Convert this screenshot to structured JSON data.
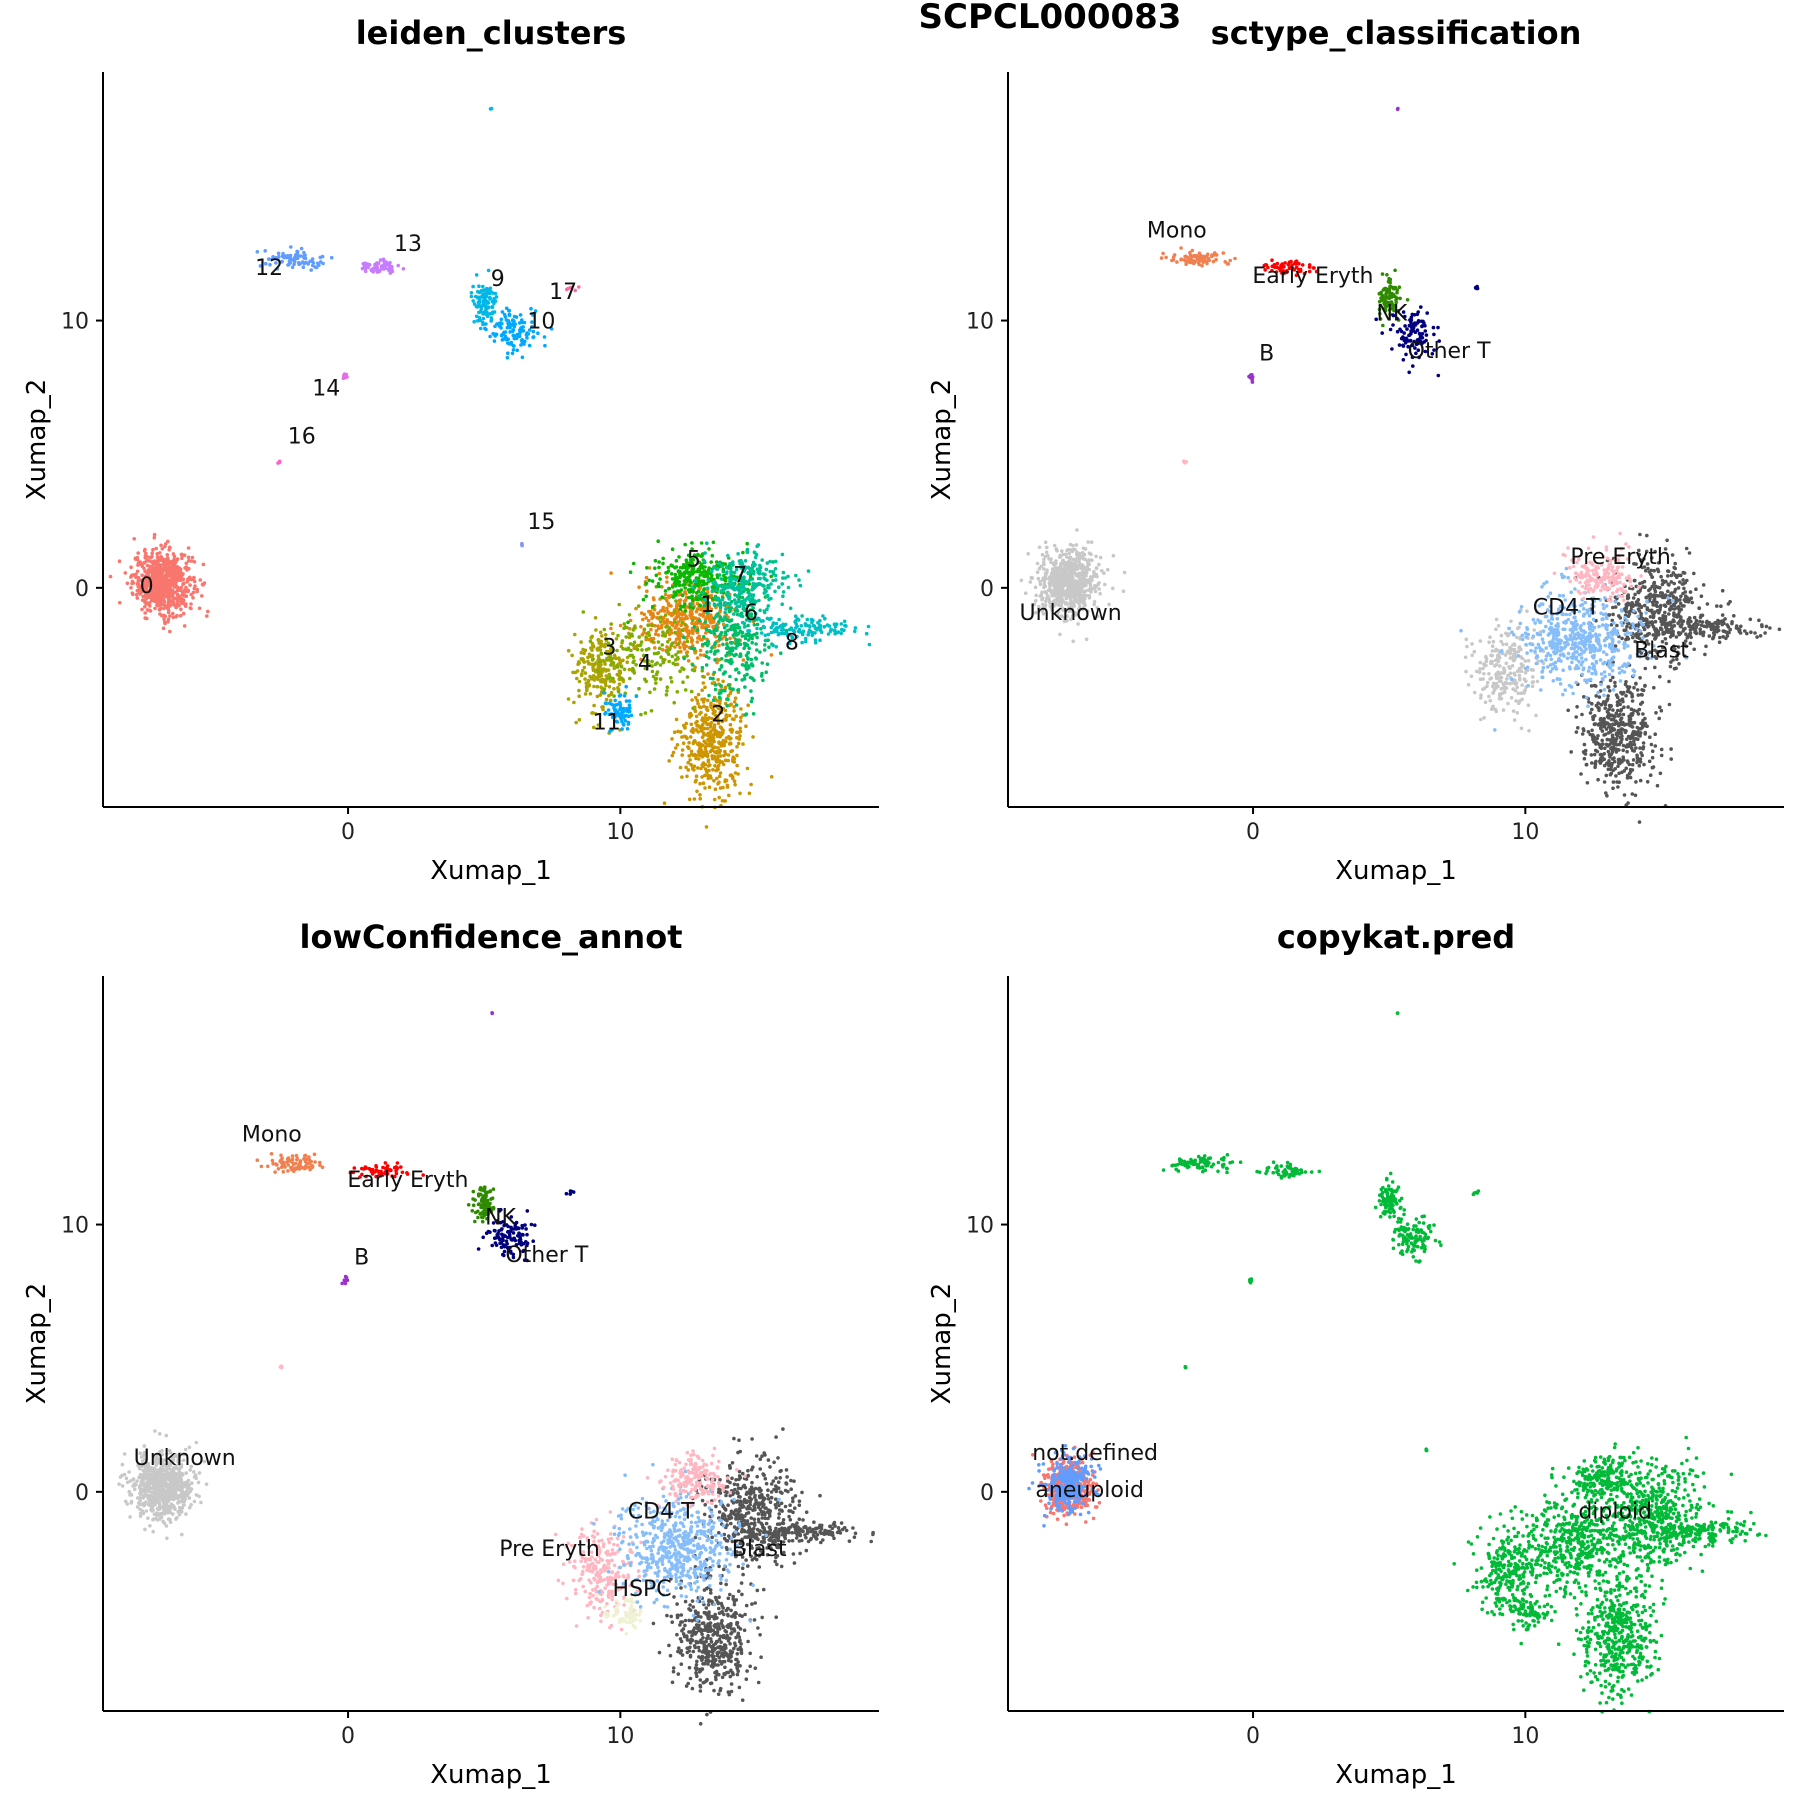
{
  "figure_title": "SCPCL000083",
  "point_colors": {
    "0": "#f8766d",
    "1": "#e68613",
    "2": "#cd9600",
    "3": "#aba300",
    "4": "#7cae00",
    "5": "#0cb702",
    "6": "#00be67",
    "7": "#00c19a",
    "8": "#00bfc4",
    "9": "#00b8e7",
    "10": "#00a9ff",
    "11": "#00a9ff",
    "12": "#619cff",
    "13": "#c77cff",
    "14": "#e36ee8",
    "15": "#8494ff",
    "16": "#ff61cc",
    "17": "#ff68a1",
    "Mono": "#f08050",
    "Early Eryth": "#ff0000",
    "NK": "#2e8b00",
    "Other T": "#00007f",
    "B": "#9932cc",
    "Unknown": "#c8c8c8",
    "Pre Eryth": "#ffb6c1",
    "CD4 T": "#87befa",
    "Blast": "#555555",
    "HSPC": "#f0f0d2",
    "diploid": "#00ba38",
    "aneuploid": "#f8766d",
    "not.defined": "#619cff"
  },
  "chart_data": [
    {
      "type": "scatter",
      "title": "leiden_clusters",
      "xlabel": "Xumap_1",
      "ylabel": "Xumap_2",
      "xlim": [
        -9,
        19.5
      ],
      "ylim": [
        -8.2,
        19.3
      ],
      "xticks": [
        0,
        10
      ],
      "yticks": [
        0,
        10
      ],
      "grid": false,
      "legend": "none",
      "point_size": "small",
      "groups": [
        {
          "name": "0",
          "cx": -6.8,
          "cy": 0.2,
          "sx": 0.55,
          "sy": 0.6,
          "n": 700
        },
        {
          "name": "1",
          "cx": 12.5,
          "cy": -1.3,
          "sx": 0.9,
          "sy": 0.7,
          "n": 420
        },
        {
          "name": "2",
          "cx": 13.4,
          "cy": -5.7,
          "sx": 0.6,
          "sy": 1.0,
          "n": 420
        },
        {
          "name": "3",
          "cx": 9.3,
          "cy": -3.0,
          "sx": 0.5,
          "sy": 0.8,
          "n": 230
        },
        {
          "name": "4",
          "cx": 11.0,
          "cy": -2.5,
          "sx": 1.0,
          "sy": 0.9,
          "n": 180
        },
        {
          "name": "5",
          "cx": 12.8,
          "cy": 0.4,
          "sx": 0.8,
          "sy": 0.55,
          "n": 300
        },
        {
          "name": "6",
          "cx": 14.2,
          "cy": -2.0,
          "sx": 0.7,
          "sy": 1.2,
          "n": 300
        },
        {
          "name": "7",
          "cx": 14.6,
          "cy": 0.1,
          "sx": 0.8,
          "sy": 0.6,
          "n": 260
        },
        {
          "name": "8",
          "cx": 16.5,
          "cy": -1.5,
          "sx": 1.1,
          "sy": 0.2,
          "n": 140
        },
        {
          "name": "9",
          "cx": 5.0,
          "cy": 10.7,
          "sx": 0.2,
          "sy": 0.4,
          "n": 110
        },
        {
          "name": "10",
          "cx": 6.1,
          "cy": 9.6,
          "sx": 0.5,
          "sy": 0.4,
          "n": 120
        },
        {
          "name": "11",
          "cx": 10.0,
          "cy": -4.6,
          "sx": 0.3,
          "sy": 0.35,
          "n": 70
        },
        {
          "name": "12",
          "cx": -2.0,
          "cy": 12.3,
          "sx": 0.6,
          "sy": 0.15,
          "n": 80
        },
        {
          "name": "13",
          "cx": 1.2,
          "cy": 12.0,
          "sx": 0.4,
          "sy": 0.12,
          "n": 55
        },
        {
          "name": "14",
          "cx": -0.1,
          "cy": 7.9,
          "sx": 0.05,
          "sy": 0.08,
          "n": 8
        },
        {
          "name": "15",
          "cx": 6.4,
          "cy": 1.6,
          "sx": 0.04,
          "sy": 0.04,
          "n": 3
        },
        {
          "name": "16",
          "cx": -2.5,
          "cy": 4.7,
          "sx": 0.04,
          "sy": 0.04,
          "n": 3
        },
        {
          "name": "17",
          "cx": 8.2,
          "cy": 11.2,
          "sx": 0.12,
          "sy": 0.05,
          "n": 5
        },
        {
          "name": "9",
          "cx": 5.3,
          "cy": 17.9,
          "sx": 0.02,
          "sy": 0.02,
          "n": 2
        }
      ],
      "annotations": [
        {
          "text": "0",
          "x": -7.4,
          "y": -0.2
        },
        {
          "text": "1",
          "x": 13.2,
          "y": -0.9
        },
        {
          "text": "2",
          "x": 13.6,
          "y": -5.0
        },
        {
          "text": "3",
          "x": 9.6,
          "y": -2.5
        },
        {
          "text": "4",
          "x": 10.9,
          "y": -3.1
        },
        {
          "text": "5",
          "x": 12.7,
          "y": 0.8
        },
        {
          "text": "6",
          "x": 14.8,
          "y": -1.2
        },
        {
          "text": "7",
          "x": 14.4,
          "y": 0.2
        },
        {
          "text": "8",
          "x": 16.3,
          "y": -2.3
        },
        {
          "text": "9",
          "x": 5.5,
          "y": 11.3
        },
        {
          "text": "10",
          "x": 7.1,
          "y": 9.7
        },
        {
          "text": "11",
          "x": 9.5,
          "y": -5.3
        },
        {
          "text": "12",
          "x": -2.9,
          "y": 11.7
        },
        {
          "text": "13",
          "x": 2.2,
          "y": 12.6
        },
        {
          "text": "14",
          "x": -0.8,
          "y": 7.2
        },
        {
          "text": "15",
          "x": 7.1,
          "y": 2.2
        },
        {
          "text": "16",
          "x": -1.7,
          "y": 5.4
        },
        {
          "text": "17",
          "x": 7.9,
          "y": 10.8
        }
      ]
    },
    {
      "type": "scatter",
      "title": "sctype_classification",
      "xlabel": "Xumap_1",
      "ylabel": "Xumap_2",
      "xlim": [
        -9,
        19.5
      ],
      "ylim": [
        -8.2,
        19.3
      ],
      "xticks": [
        0,
        10
      ],
      "yticks": [
        0,
        10
      ],
      "grid": false,
      "legend": "none",
      "point_size": "small",
      "groups": [
        {
          "name": "Unknown",
          "cx": -6.8,
          "cy": 0.2,
          "sx": 0.55,
          "sy": 0.6,
          "n": 700
        },
        {
          "name": "Unknown",
          "cx": 9.3,
          "cy": -3.0,
          "sx": 0.6,
          "sy": 0.8,
          "n": 240
        },
        {
          "name": "Blast",
          "cx": 13.4,
          "cy": -5.5,
          "sx": 0.7,
          "sy": 1.1,
          "n": 460
        },
        {
          "name": "Blast",
          "cx": 14.8,
          "cy": -0.8,
          "sx": 0.9,
          "sy": 1.0,
          "n": 480
        },
        {
          "name": "Blast",
          "cx": 16.6,
          "cy": -1.5,
          "sx": 1.0,
          "sy": 0.2,
          "n": 140
        },
        {
          "name": "CD4 T",
          "cx": 12.0,
          "cy": -2.0,
          "sx": 1.1,
          "sy": 0.9,
          "n": 520
        },
        {
          "name": "Pre Eryth",
          "cx": 12.8,
          "cy": 0.5,
          "sx": 0.6,
          "sy": 0.45,
          "n": 180
        },
        {
          "name": "Mono",
          "cx": -2.0,
          "cy": 12.3,
          "sx": 0.6,
          "sy": 0.15,
          "n": 80
        },
        {
          "name": "Early Eryth",
          "cx": 1.3,
          "cy": 12.0,
          "sx": 0.45,
          "sy": 0.12,
          "n": 60
        },
        {
          "name": "NK",
          "cx": 5.0,
          "cy": 10.8,
          "sx": 0.2,
          "sy": 0.35,
          "n": 90
        },
        {
          "name": "Other T",
          "cx": 5.9,
          "cy": 9.5,
          "sx": 0.4,
          "sy": 0.4,
          "n": 110
        },
        {
          "name": "Other T",
          "cx": 8.2,
          "cy": 11.2,
          "sx": 0.12,
          "sy": 0.05,
          "n": 5
        },
        {
          "name": "B",
          "cx": -0.1,
          "cy": 7.9,
          "sx": 0.05,
          "sy": 0.08,
          "n": 8
        },
        {
          "name": "Pre Eryth",
          "cx": -2.5,
          "cy": 4.7,
          "sx": 0.04,
          "sy": 0.04,
          "n": 3
        },
        {
          "name": "B",
          "cx": 5.3,
          "cy": 17.9,
          "sx": 0.02,
          "sy": 0.02,
          "n": 2
        }
      ],
      "annotations": [
        {
          "text": "Mono",
          "x": -2.8,
          "y": 13.1
        },
        {
          "text": "Early Eryth",
          "x": 2.2,
          "y": 11.4
        },
        {
          "text": "NK",
          "x": 5.1,
          "y": 10.0
        },
        {
          "text": "Other T",
          "x": 7.2,
          "y": 8.6
        },
        {
          "text": "B",
          "x": 0.5,
          "y": 8.5
        },
        {
          "text": "Unknown",
          "x": -6.7,
          "y": -1.2
        },
        {
          "text": "Pre Eryth",
          "x": 13.5,
          "y": 0.9
        },
        {
          "text": "CD4 T",
          "x": 11.5,
          "y": -1.0
        },
        {
          "text": "Blast",
          "x": 15.0,
          "y": -2.6
        }
      ]
    },
    {
      "type": "scatter",
      "title": "lowConfidence_annot",
      "xlabel": "Xumap_1",
      "ylabel": "Xumap_2",
      "xlim": [
        -9,
        19.5
      ],
      "ylim": [
        -8.2,
        19.3
      ],
      "xticks": [
        0,
        10
      ],
      "yticks": [
        0,
        10
      ],
      "grid": false,
      "legend": "none",
      "point_size": "small",
      "groups": [
        {
          "name": "Unknown",
          "cx": -6.8,
          "cy": 0.2,
          "sx": 0.55,
          "sy": 0.6,
          "n": 700
        },
        {
          "name": "Pre Eryth",
          "cx": 9.3,
          "cy": -3.0,
          "sx": 0.6,
          "sy": 0.8,
          "n": 240
        },
        {
          "name": "HSPC",
          "cx": 10.2,
          "cy": -4.6,
          "sx": 0.4,
          "sy": 0.35,
          "n": 70
        },
        {
          "name": "Blast",
          "cx": 13.4,
          "cy": -5.5,
          "sx": 0.7,
          "sy": 1.1,
          "n": 460
        },
        {
          "name": "Blast",
          "cx": 14.8,
          "cy": -0.8,
          "sx": 0.9,
          "sy": 1.0,
          "n": 480
        },
        {
          "name": "Blast",
          "cx": 16.6,
          "cy": -1.5,
          "sx": 1.0,
          "sy": 0.2,
          "n": 140
        },
        {
          "name": "CD4 T",
          "cx": 12.0,
          "cy": -2.0,
          "sx": 1.1,
          "sy": 0.9,
          "n": 520
        },
        {
          "name": "Pre Eryth",
          "cx": 12.8,
          "cy": 0.5,
          "sx": 0.6,
          "sy": 0.45,
          "n": 180
        },
        {
          "name": "Mono",
          "cx": -2.0,
          "cy": 12.3,
          "sx": 0.6,
          "sy": 0.15,
          "n": 80
        },
        {
          "name": "Early Eryth",
          "cx": 1.3,
          "cy": 12.0,
          "sx": 0.45,
          "sy": 0.12,
          "n": 60
        },
        {
          "name": "NK",
          "cx": 5.0,
          "cy": 10.8,
          "sx": 0.2,
          "sy": 0.35,
          "n": 90
        },
        {
          "name": "Other T",
          "cx": 5.9,
          "cy": 9.5,
          "sx": 0.4,
          "sy": 0.4,
          "n": 110
        },
        {
          "name": "Other T",
          "cx": 8.2,
          "cy": 11.2,
          "sx": 0.12,
          "sy": 0.05,
          "n": 5
        },
        {
          "name": "B",
          "cx": -0.1,
          "cy": 7.9,
          "sx": 0.05,
          "sy": 0.08,
          "n": 8
        },
        {
          "name": "Pre Eryth",
          "cx": -2.5,
          "cy": 4.7,
          "sx": 0.04,
          "sy": 0.04,
          "n": 3
        },
        {
          "name": "B",
          "cx": 5.3,
          "cy": 17.9,
          "sx": 0.02,
          "sy": 0.02,
          "n": 2
        }
      ],
      "annotations": [
        {
          "text": "Mono",
          "x": -2.8,
          "y": 13.1
        },
        {
          "text": "Early Eryth",
          "x": 2.2,
          "y": 11.4
        },
        {
          "text": "NK",
          "x": 5.6,
          "y": 10.0
        },
        {
          "text": "Other T",
          "x": 7.3,
          "y": 8.6
        },
        {
          "text": "B",
          "x": 0.5,
          "y": 8.5
        },
        {
          "text": "Unknown",
          "x": -6.0,
          "y": 1.0
        },
        {
          "text": "Pre Eryth",
          "x": 7.4,
          "y": -2.4
        },
        {
          "text": "CD4 T",
          "x": 11.5,
          "y": -1.0
        },
        {
          "text": "Blast",
          "x": 15.1,
          "y": -2.4
        },
        {
          "text": "HSPC",
          "x": 10.8,
          "y": -3.9
        }
      ]
    },
    {
      "type": "scatter",
      "title": "copykat.pred",
      "xlabel": "Xumap_1",
      "ylabel": "Xumap_2",
      "xlim": [
        -9,
        19.5
      ],
      "ylim": [
        -8.2,
        19.3
      ],
      "xticks": [
        0,
        10
      ],
      "yticks": [
        0,
        10
      ],
      "grid": false,
      "legend": "none",
      "point_size": "small",
      "groups": [
        {
          "name": "aneuploid",
          "cx": -6.8,
          "cy": 0.2,
          "sx": 0.45,
          "sy": 0.55,
          "n": 420
        },
        {
          "name": "not.defined",
          "cx": -6.8,
          "cy": 0.3,
          "sx": 0.45,
          "sy": 0.5,
          "n": 280
        },
        {
          "name": "diploid",
          "cx": 9.3,
          "cy": -3.0,
          "sx": 0.6,
          "sy": 0.8,
          "n": 240
        },
        {
          "name": "diploid",
          "cx": 10.2,
          "cy": -4.6,
          "sx": 0.4,
          "sy": 0.35,
          "n": 70
        },
        {
          "name": "diploid",
          "cx": 13.4,
          "cy": -5.5,
          "sx": 0.7,
          "sy": 1.1,
          "n": 460
        },
        {
          "name": "diploid",
          "cx": 14.8,
          "cy": -0.8,
          "sx": 0.9,
          "sy": 1.0,
          "n": 480
        },
        {
          "name": "diploid",
          "cx": 16.6,
          "cy": -1.5,
          "sx": 1.0,
          "sy": 0.2,
          "n": 140
        },
        {
          "name": "diploid",
          "cx": 12.0,
          "cy": -2.0,
          "sx": 1.1,
          "sy": 0.9,
          "n": 520
        },
        {
          "name": "diploid",
          "cx": 12.8,
          "cy": 0.5,
          "sx": 0.6,
          "sy": 0.45,
          "n": 180
        },
        {
          "name": "diploid",
          "cx": -2.0,
          "cy": 12.3,
          "sx": 0.6,
          "sy": 0.15,
          "n": 80
        },
        {
          "name": "diploid",
          "cx": 1.3,
          "cy": 12.0,
          "sx": 0.45,
          "sy": 0.12,
          "n": 60
        },
        {
          "name": "diploid",
          "cx": 5.0,
          "cy": 10.8,
          "sx": 0.2,
          "sy": 0.35,
          "n": 90
        },
        {
          "name": "diploid",
          "cx": 5.9,
          "cy": 9.5,
          "sx": 0.4,
          "sy": 0.4,
          "n": 110
        },
        {
          "name": "diploid",
          "cx": 8.2,
          "cy": 11.2,
          "sx": 0.12,
          "sy": 0.05,
          "n": 5
        },
        {
          "name": "diploid",
          "cx": -0.1,
          "cy": 7.9,
          "sx": 0.05,
          "sy": 0.08,
          "n": 8
        },
        {
          "name": "diploid",
          "cx": -2.5,
          "cy": 4.7,
          "sx": 0.04,
          "sy": 0.04,
          "n": 3
        },
        {
          "name": "diploid",
          "cx": 6.4,
          "cy": 1.6,
          "sx": 0.04,
          "sy": 0.04,
          "n": 3
        },
        {
          "name": "diploid",
          "cx": 5.3,
          "cy": 17.9,
          "sx": 0.02,
          "sy": 0.02,
          "n": 2
        }
      ],
      "annotations": [
        {
          "text": "not.defined",
          "x": -5.8,
          "y": 1.2
        },
        {
          "text": "aneuploid",
          "x": -6.0,
          "y": -0.2
        },
        {
          "text": "diploid",
          "x": 13.3,
          "y": -1.0
        }
      ]
    }
  ]
}
